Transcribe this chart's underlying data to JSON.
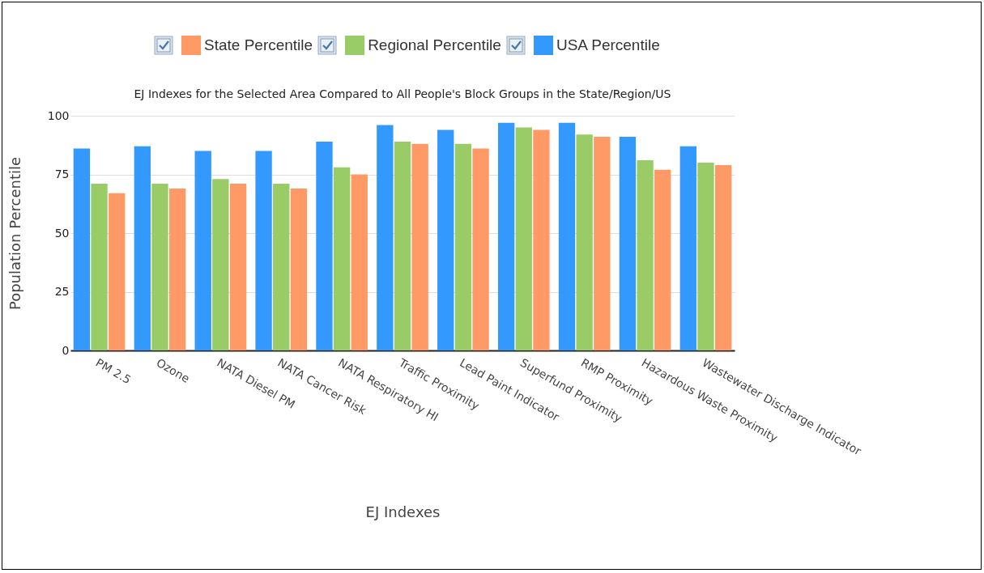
{
  "chart_data": {
    "type": "bar",
    "title": "EJ Indexes for the Selected Area Compared to All People's Block Groups in the State/Region/US",
    "xlabel": "EJ Indexes",
    "ylabel": "Population Percentile",
    "categories": [
      "PM 2.5",
      "Ozone",
      "NATA Diesel PM",
      "NATA Cancer Risk",
      "NATA Respiratory HI",
      "Traffic Proximity",
      "Lead Paint Indicator",
      "Superfund Proximity",
      "RMP Proximity",
      "Hazardous Waste Proximity",
      "Wastewater Discharge Indicator"
    ],
    "series": [
      {
        "name": "State Percentile",
        "color": "#ff9966",
        "values": [
          67,
          69,
          71,
          69,
          75,
          88,
          86,
          94,
          91,
          77,
          79
        ]
      },
      {
        "name": "Regional Percentile",
        "color": "#99cc66",
        "values": [
          71,
          71,
          73,
          71,
          78,
          89,
          88,
          95,
          92,
          81,
          80
        ]
      },
      {
        "name": "USA Percentile",
        "color": "#3399ff",
        "values": [
          86,
          87,
          85,
          85,
          89,
          96,
          94,
          97,
          97,
          91,
          87
        ]
      }
    ],
    "ylim": [
      0,
      100
    ],
    "yticks": [
      0,
      25,
      50,
      75,
      100
    ],
    "grid": "y",
    "legend": "top"
  }
}
